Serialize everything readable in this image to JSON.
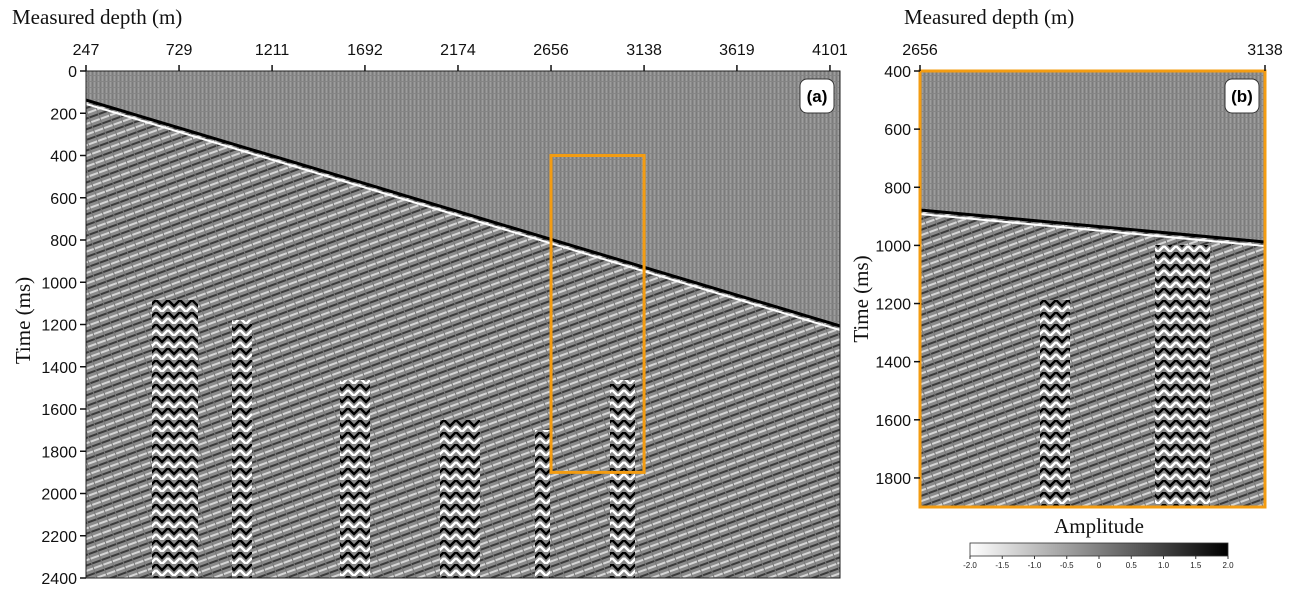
{
  "chart_data": [
    {
      "type": "seismic",
      "label": "(a)",
      "xlabel": "Measured depth (m)",
      "ylabel": "Time (ms)",
      "xlim": [
        247,
        4153
      ],
      "xticks": [
        247,
        729,
        1211,
        1692,
        2174,
        2656,
        3138,
        3619,
        4101
      ],
      "ylim": [
        0,
        2400
      ],
      "yticks": [
        0,
        200,
        400,
        600,
        800,
        1000,
        1200,
        1400,
        1600,
        1800,
        2000,
        2200,
        2400
      ]
    },
    {
      "type": "seismic",
      "label": "(b)",
      "xlabel": "Measured depth (m)",
      "ylabel": "Time (ms)",
      "xlim": [
        2656,
        3138
      ],
      "xticks": [
        2656,
        3138
      ],
      "ylim": [
        400,
        1900
      ],
      "yticks": [
        400,
        600,
        800,
        1000,
        1200,
        1400,
        1600,
        1800
      ],
      "colorbar": {
        "title": "Amplitude",
        "ticks": [
          {
            "value": -2,
            "label": "-2.0"
          },
          -1.5,
          {
            "value": -1,
            "label": "-1.0"
          },
          -0.5,
          0,
          0.5,
          {
            "value": 1,
            "label": "1.0"
          },
          1.5,
          {
            "value": 2,
            "label": "2.0"
          }
        ]
      }
    }
  ]
}
